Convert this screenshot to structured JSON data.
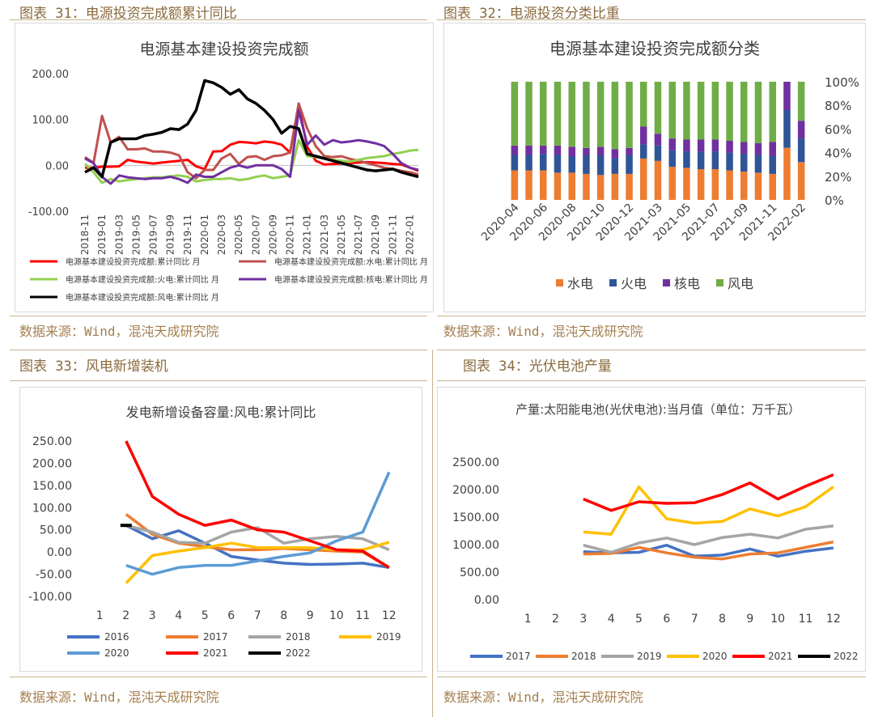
{
  "panels": [
    {
      "title": "图表 31：电源投资完成额累计同比",
      "source": "数据来源：Wind，混沌天成研究院"
    },
    {
      "title": "图表 32：电源投资分类比重",
      "source": "数据来源：Wind，混沌天成研究院"
    },
    {
      "title": "图表 33：风电新增装机",
      "source": "数据来源：Wind，混沌天成研究院"
    },
    {
      "title": "图表 34：光伏电池产量",
      "source": "数据来源：Wind，混沌天成研究院"
    }
  ],
  "colors": {
    "red": "#ff0000",
    "brown": "#c0504d",
    "green": "#92d050",
    "purple": "#7030a0",
    "black": "#000000",
    "orange": "#ed7d31",
    "navy": "#2f5597",
    "blue": "#4472c4",
    "gray": "#a5a5a5",
    "gold": "#ffc000",
    "lightblue": "#5b9bd5",
    "olive": "#70ad47"
  },
  "chart_data": [
    {
      "type": "line",
      "title": "电源基本建设投资完成额",
      "x": [
        "2018-11",
        "2018-12",
        "2019-01",
        "2019-02",
        "2019-03",
        "2019-04",
        "2019-05",
        "2019-06",
        "2019-07",
        "2019-08",
        "2019-09",
        "2019-10",
        "2019-11",
        "2019-12",
        "2020-01",
        "2020-02",
        "2020-03",
        "2020-04",
        "2020-05",
        "2020-06",
        "2020-07",
        "2020-08",
        "2020-09",
        "2020-10",
        "2020-11",
        "2020-12",
        "2021-01",
        "2021-02",
        "2021-03",
        "2021-04",
        "2021-05",
        "2021-06",
        "2021-07",
        "2021-08",
        "2021-09",
        "2021-10",
        "2021-11",
        "2021-12",
        "2022-01",
        "2022-02"
      ],
      "xticks": [
        "2018-11",
        "2019-01",
        "2019-03",
        "2019-05",
        "2019-07",
        "2019-09",
        "2019-11",
        "2020-01",
        "2020-03",
        "2020-05",
        "2020-07",
        "2020-09",
        "2020-11",
        "2021-01",
        "2021-03",
        "2021-05",
        "2021-07",
        "2021-09",
        "2021-11",
        "2022-01"
      ],
      "yticks": [
        "200.00",
        "100.00",
        "0.00",
        "-100.00"
      ],
      "ylim": [
        -100,
        200
      ],
      "series": [
        {
          "name": "电源基本建设投资完成额:累计同比 月",
          "color": "#ff0000",
          "values": [
            -5,
            -5,
            -3,
            -3,
            -2,
            12,
            8,
            6,
            4,
            6,
            8,
            10,
            12,
            -2,
            -8,
            30,
            31,
            45,
            51,
            50,
            48,
            52,
            50,
            45,
            28,
            130,
            40,
            10,
            2,
            3,
            4,
            5,
            6,
            7,
            6,
            5,
            3,
            2,
            -5,
            -12
          ]
        },
        {
          "name": "电源基本建设投资完成额:水电:累计同比 月",
          "color": "#c0504d",
          "values": [
            18,
            5,
            108,
            50,
            62,
            35,
            35,
            37,
            30,
            30,
            28,
            22,
            -15,
            -28,
            -10,
            -10,
            15,
            25,
            3,
            18,
            20,
            12,
            20,
            22,
            28,
            135,
            80,
            42,
            20,
            18,
            20,
            14,
            10,
            5,
            0,
            -5,
            -8,
            -12,
            -15,
            -20
          ]
        },
        {
          "name": "电源基本建设投资完成额:火电:累计同比 月",
          "color": "#92d050",
          "values": [
            3,
            -15,
            -38,
            -30,
            -35,
            -32,
            -30,
            -28,
            -26,
            -26,
            -24,
            -22,
            -25,
            -35,
            -32,
            -30,
            -30,
            -28,
            -32,
            -30,
            -25,
            -22,
            -28,
            -25,
            -22,
            55,
            20,
            18,
            15,
            12,
            10,
            8,
            12,
            16,
            18,
            20,
            25,
            28,
            32,
            34
          ]
        },
        {
          "name": "电源基本建设投资完成额:核电:累计同比 月",
          "color": "#7030a0",
          "values": [
            15,
            5,
            -25,
            -40,
            -22,
            -26,
            -28,
            -30,
            -28,
            -28,
            -25,
            -30,
            -38,
            -20,
            -25,
            -25,
            -15,
            -5,
            0,
            -5,
            0,
            0,
            0,
            -8,
            -25,
            120,
            45,
            65,
            45,
            55,
            50,
            52,
            55,
            52,
            48,
            42,
            25,
            5,
            -5,
            -10
          ]
        },
        {
          "name": "电源基本建设投资完成额:风电:累计同比 月",
          "color": "#000000",
          "values": [
            -15,
            -5,
            -25,
            50,
            58,
            58,
            58,
            65,
            68,
            72,
            80,
            78,
            90,
            120,
            185,
            180,
            170,
            155,
            165,
            145,
            135,
            120,
            100,
            70,
            85,
            80,
            25,
            20,
            15,
            10,
            5,
            0,
            -5,
            -10,
            -12,
            -10,
            -8,
            -15,
            -20,
            -25
          ]
        }
      ]
    },
    {
      "type": "bar",
      "stacked": true,
      "title": "电源基本建设投资完成额分类",
      "categories": [
        "2020-04",
        "2020-05",
        "2020-06",
        "2020-07",
        "2020-08",
        "2020-09",
        "2020-10",
        "2020-11",
        "2020-12",
        "2021-01",
        "2021-03",
        "2021-04",
        "2021-05",
        "2021-06",
        "2021-07",
        "2021-08",
        "2021-09",
        "2021-10",
        "2021-11",
        "2021-12",
        "2022-02"
      ],
      "xticks": [
        "2020-04",
        "2020-06",
        "2020-08",
        "2020-10",
        "2020-12",
        "2021-03",
        "2021-05",
        "2021-07",
        "2021-09",
        "2021-11",
        "2022-02"
      ],
      "yticks": [
        "100%",
        "80%",
        "60%",
        "40%",
        "20%",
        "0%"
      ],
      "ylim": [
        0,
        100
      ],
      "legend_position": "bottom",
      "series": [
        {
          "name": "水电",
          "color": "#ed7d31",
          "values": [
            25,
            25,
            25,
            23,
            23,
            22,
            21,
            22,
            22,
            35,
            33,
            28,
            27,
            26,
            26,
            25,
            24,
            23,
            22,
            44,
            32
          ]
        },
        {
          "name": "火电",
          "color": "#2f5597",
          "values": [
            13,
            13,
            14,
            15,
            14,
            16,
            17,
            13,
            16,
            12,
            13,
            14,
            14,
            15,
            15,
            15,
            15,
            15,
            15,
            32,
            20
          ]
        },
        {
          "name": "核电",
          "color": "#7030a0",
          "values": [
            8,
            8,
            7,
            8,
            8,
            6,
            7,
            8,
            6,
            15,
            10,
            10,
            10,
            10,
            10,
            10,
            10,
            10,
            12,
            24,
            15
          ]
        },
        {
          "name": "风电",
          "color": "#70ad47",
          "values": [
            54,
            54,
            54,
            54,
            55,
            56,
            55,
            57,
            56,
            38,
            44,
            48,
            49,
            49,
            49,
            50,
            51,
            52,
            51,
            0,
            33
          ]
        }
      ]
    },
    {
      "type": "line",
      "title": "发电新增设备容量:风电:累计同比",
      "categories": [
        "1",
        "2",
        "3",
        "4",
        "5",
        "6",
        "7",
        "8",
        "9",
        "10",
        "11",
        "12"
      ],
      "yticks": [
        "250.00",
        "200.00",
        "150.00",
        "100.00",
        "50.00",
        "0.00",
        "-50.00",
        "-100.00"
      ],
      "ylim": [
        -100,
        250
      ],
      "legend_position": "bottom",
      "series": [
        {
          "name": "2016",
          "color": "#4472c4",
          "values": [
            null,
            60,
            30,
            48,
            20,
            -10,
            -18,
            -25,
            -28,
            -27,
            -25,
            -35
          ]
        },
        {
          "name": "2017",
          "color": "#ed7d31",
          "values": [
            null,
            85,
            40,
            20,
            12,
            5,
            5,
            8,
            5,
            2,
            0,
            -35
          ]
        },
        {
          "name": "2018",
          "color": "#a5a5a5",
          "values": [
            null,
            60,
            45,
            22,
            20,
            45,
            55,
            20,
            30,
            35,
            30,
            5
          ]
        },
        {
          "name": "2019",
          "color": "#ffc000",
          "values": [
            null,
            -70,
            -8,
            2,
            10,
            20,
            10,
            10,
            10,
            5,
            5,
            22
          ]
        },
        {
          "name": "2020",
          "color": "#5b9bd5",
          "values": [
            null,
            -30,
            -50,
            -35,
            -30,
            -30,
            -20,
            -10,
            -2,
            25,
            45,
            180
          ]
        },
        {
          "name": "2021",
          "color": "#ff0000",
          "values": [
            null,
            250,
            125,
            85,
            60,
            72,
            50,
            45,
            25,
            5,
            2,
            -35
          ]
        },
        {
          "name": "2022",
          "color": "#000000",
          "values": [
            null,
            60,
            null,
            null,
            null,
            null,
            null,
            null,
            null,
            null,
            null,
            null
          ]
        }
      ]
    },
    {
      "type": "line",
      "title": "产量:太阳能电池(光伏电池):当月值（单位：万千瓦）",
      "categories": [
        "1",
        "2",
        "3",
        "4",
        "5",
        "6",
        "7",
        "8",
        "9",
        "10",
        "11",
        "12"
      ],
      "yticks": [
        "2500.00",
        "2000.00",
        "1500.00",
        "1000.00",
        "500.00",
        "0.00"
      ],
      "ylim": [
        0,
        2500
      ],
      "legend_position": "bottom",
      "series": [
        {
          "name": "2017",
          "color": "#4472c4",
          "values": [
            null,
            null,
            870,
            850,
            860,
            990,
            790,
            810,
            920,
            790,
            880,
            940
          ]
        },
        {
          "name": "2018",
          "color": "#ed7d31",
          "values": [
            null,
            null,
            830,
            840,
            950,
            850,
            770,
            740,
            830,
            850,
            950,
            1050
          ]
        },
        {
          "name": "2019",
          "color": "#a5a5a5",
          "values": [
            null,
            null,
            990,
            860,
            1030,
            1120,
            1000,
            1130,
            1190,
            1120,
            1280,
            1340
          ]
        },
        {
          "name": "2020",
          "color": "#ffc000",
          "values": [
            null,
            null,
            1230,
            1190,
            2050,
            1470,
            1390,
            1420,
            1650,
            1520,
            1690,
            2050
          ]
        },
        {
          "name": "2021",
          "color": "#ff0000",
          "values": [
            null,
            null,
            1830,
            1620,
            1780,
            1750,
            1760,
            1910,
            2120,
            1830,
            2060,
            2270
          ]
        },
        {
          "name": "2022",
          "color": "#000000",
          "values": [
            null,
            null,
            null,
            null,
            null,
            null,
            null,
            null,
            null,
            null,
            null,
            null
          ]
        }
      ]
    }
  ]
}
